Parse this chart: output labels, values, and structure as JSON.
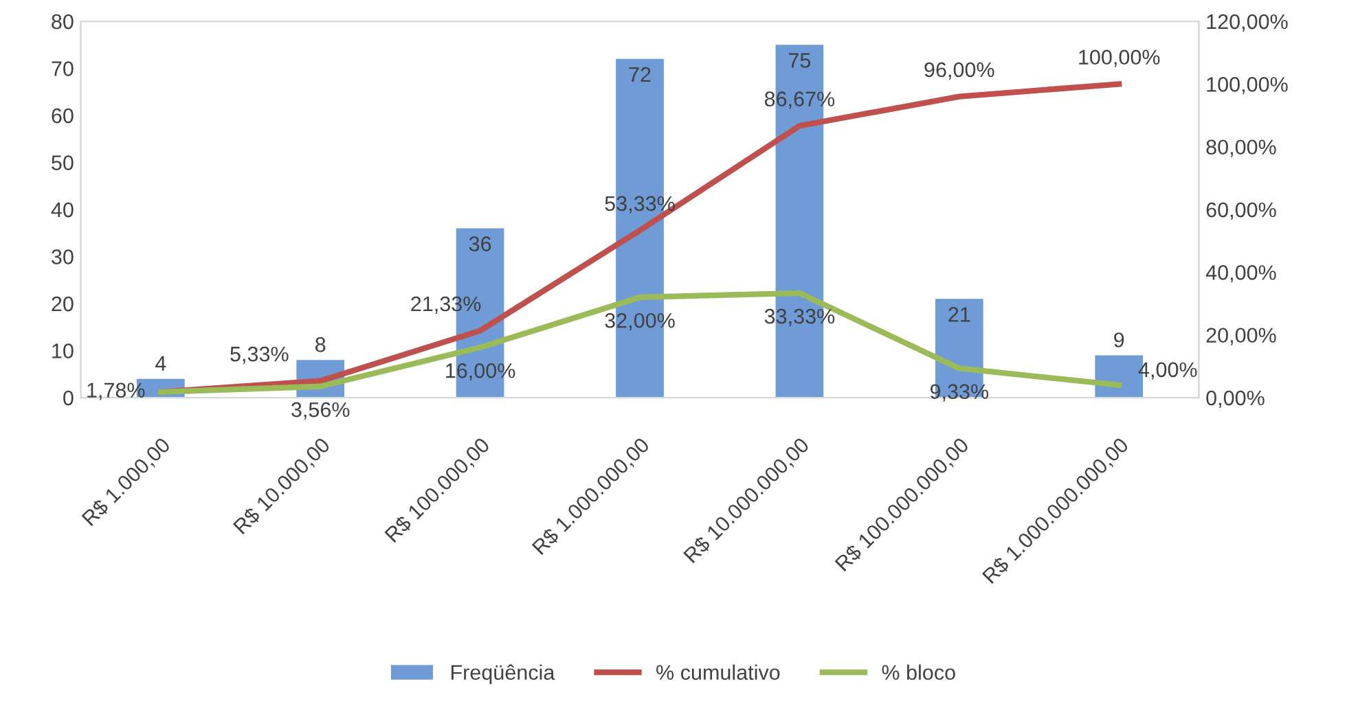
{
  "chart_data": {
    "type": "bar",
    "categories": [
      "R$ 1.000,00",
      "R$ 10.000,00",
      "R$ 100.000,00",
      "R$ 1.000.000,00",
      "R$ 10.000.000,00",
      "R$ 100.000.000,00",
      "R$ 1.000.000.000,00"
    ],
    "series": [
      {
        "name": "Freqüência",
        "color": "#6f9bd6",
        "values": [
          4,
          8,
          36,
          72,
          75,
          21,
          9
        ],
        "value_labels": [
          "4",
          "8",
          "36",
          "72",
          "75",
          "21",
          "9"
        ]
      },
      {
        "name": "% cumulativo",
        "type": "line",
        "axis": "y2",
        "color": "#c0504d",
        "values": [
          1.78,
          5.33,
          21.33,
          53.33,
          86.67,
          96.0,
          100.0
        ],
        "value_labels": [
          null,
          "5,33%",
          "21,33%",
          "53,33%",
          "86,67%",
          "96,00%",
          "100,00%"
        ]
      },
      {
        "name": "% bloco",
        "type": "line",
        "axis": "y2",
        "color": "#9bbb59",
        "values": [
          1.78,
          3.56,
          16.0,
          32.0,
          33.33,
          9.33,
          4.0
        ],
        "value_labels": [
          "1,78%",
          "3,56%",
          "16,00%",
          "32,00%",
          "33,33%",
          "9,33%",
          "4,00%"
        ]
      }
    ],
    "ylim": [
      0,
      80
    ],
    "yticks": [
      0,
      10,
      20,
      30,
      40,
      50,
      60,
      70,
      80
    ],
    "y2lim": [
      0,
      120
    ],
    "y2ticks": [
      {
        "value": 0,
        "label": "0,00%"
      },
      {
        "value": 20,
        "label": "20,00%"
      },
      {
        "value": 40,
        "label": "40,00%"
      },
      {
        "value": 60,
        "label": "60,00%"
      },
      {
        "value": 80,
        "label": "80,00%"
      },
      {
        "value": 100,
        "label": "100,00%"
      },
      {
        "value": 120,
        "label": "120,00%"
      }
    ],
    "legend": "bottom",
    "marker": "none",
    "line_style": "solid",
    "grid": false
  }
}
